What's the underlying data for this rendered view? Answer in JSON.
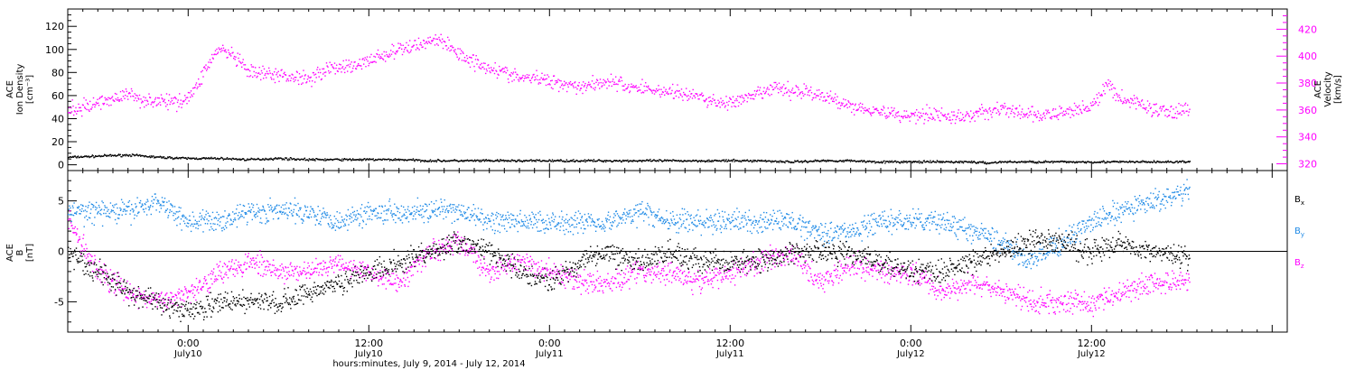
{
  "xaxis": {
    "title": "hours:minutes, July  9, 2014 - July 12, 2014",
    "ticks": [
      {
        "hour": 24,
        "time": "0:00",
        "date": "July10"
      },
      {
        "hour": 36,
        "time": "12:00",
        "date": "July10"
      },
      {
        "hour": 48,
        "time": "0:00",
        "date": "July11"
      },
      {
        "hour": 60,
        "time": "12:00",
        "date": "July11"
      },
      {
        "hour": 72,
        "time": "0:00",
        "date": "July12"
      },
      {
        "hour": 84,
        "time": "12:00",
        "date": "July12"
      }
    ],
    "range_hours": [
      16,
      97
    ],
    "data_end_hour": 90.5
  },
  "colors": {
    "black": "#000000",
    "magenta": "#ff00ff",
    "blue": "#1f8ae6"
  },
  "chart_data": [
    {
      "type": "scatter",
      "title": "",
      "ylabel_left": [
        "ACE",
        "Ion Density",
        "[cm⁻³]"
      ],
      "ylabel_right": [
        "ACE",
        "Velocity",
        "[km/s]"
      ],
      "ylim_left": [
        -5,
        135
      ],
      "yticks_left": [
        0,
        20,
        40,
        60,
        80,
        100,
        120
      ],
      "ylim_right": [
        315,
        435
      ],
      "yticks_right": [
        320,
        340,
        360,
        380,
        400,
        420
      ],
      "series": [
        {
          "name": "Ion Density",
          "axis": "left",
          "color": "black",
          "points": [
            [
              16,
              7
            ],
            [
              18,
              8
            ],
            [
              20,
              9
            ],
            [
              22,
              7
            ],
            [
              24,
              6
            ],
            [
              26,
              6
            ],
            [
              28,
              5
            ],
            [
              30,
              6
            ],
            [
              32,
              5
            ],
            [
              34,
              5
            ],
            [
              36,
              5
            ],
            [
              38,
              5
            ],
            [
              40,
              4
            ],
            [
              42,
              4
            ],
            [
              44,
              4
            ],
            [
              46,
              4
            ],
            [
              48,
              4
            ],
            [
              50,
              4
            ],
            [
              52,
              4
            ],
            [
              54,
              4
            ],
            [
              56,
              4
            ],
            [
              58,
              4
            ],
            [
              60,
              4
            ],
            [
              62,
              4
            ],
            [
              64,
              3
            ],
            [
              66,
              4
            ],
            [
              68,
              4
            ],
            [
              70,
              3
            ],
            [
              72,
              3
            ],
            [
              74,
              3
            ],
            [
              76,
              3
            ],
            [
              77,
              2
            ],
            [
              78,
              3
            ],
            [
              80,
              3
            ],
            [
              82,
              3
            ],
            [
              84,
              3
            ],
            [
              86,
              3
            ],
            [
              88,
              3
            ],
            [
              90.5,
              3
            ]
          ]
        },
        {
          "name": "Velocity",
          "axis": "right",
          "color": "magenta",
          "points": [
            [
              16,
              360
            ],
            [
              17,
              362
            ],
            [
              18,
              366
            ],
            [
              19,
              369
            ],
            [
              20,
              372
            ],
            [
              21,
              368
            ],
            [
              22,
              367
            ],
            [
              23,
              366
            ],
            [
              24,
              370
            ],
            [
              24.5,
              377
            ],
            [
              25,
              389
            ],
            [
              25.5,
              398
            ],
            [
              26,
              406
            ],
            [
              27,
              400
            ],
            [
              28,
              388
            ],
            [
              30,
              386
            ],
            [
              32,
              384
            ],
            [
              33,
              390
            ],
            [
              34,
              393
            ],
            [
              35,
              392
            ],
            [
              36,
              398
            ],
            [
              37,
              401
            ],
            [
              38,
              405
            ],
            [
              39,
              408
            ],
            [
              40,
              412
            ],
            [
              40.5,
              413
            ],
            [
              41,
              410
            ],
            [
              42,
              402
            ],
            [
              43,
              396
            ],
            [
              44,
              392
            ],
            [
              45,
              388
            ],
            [
              46,
              384
            ],
            [
              47,
              384
            ],
            [
              48,
              382
            ],
            [
              49,
              380
            ],
            [
              50,
              378
            ],
            [
              51,
              380
            ],
            [
              52,
              382
            ],
            [
              53,
              378
            ],
            [
              54,
              377
            ],
            [
              55,
              375
            ],
            [
              56,
              374
            ],
            [
              57,
              372
            ],
            [
              58,
              370
            ],
            [
              59,
              366
            ],
            [
              60,
              366
            ],
            [
              61,
              368
            ],
            [
              62,
              373
            ],
            [
              63,
              377
            ],
            [
              64,
              374
            ],
            [
              65,
              375
            ],
            [
              66,
              370
            ],
            [
              67,
              368
            ],
            [
              68,
              363
            ],
            [
              69,
              362
            ],
            [
              70,
              359
            ],
            [
              71,
              357
            ],
            [
              72,
              356
            ],
            [
              73,
              358
            ],
            [
              74,
              357
            ],
            [
              75,
              354
            ],
            [
              76,
              357
            ],
            [
              77,
              359
            ],
            [
              78,
              362
            ],
            [
              79,
              358
            ],
            [
              80,
              357
            ],
            [
              81,
              356
            ],
            [
              82,
              358
            ],
            [
              83,
              361
            ],
            [
              84,
              364
            ],
            [
              84.5,
              369
            ],
            [
              85,
              380
            ],
            [
              85.5,
              374
            ],
            [
              86,
              368
            ],
            [
              87,
              366
            ],
            [
              88,
              361
            ],
            [
              89,
              359
            ],
            [
              90,
              360
            ],
            [
              90.5,
              361
            ]
          ]
        }
      ]
    },
    {
      "type": "scatter",
      "title": "",
      "ylabel": [
        "ACE",
        "B",
        "[nT]"
      ],
      "ylim": [
        -8,
        8
      ],
      "yticks": [
        -5,
        0,
        5
      ],
      "zero_line": true,
      "legend": [
        {
          "label": "B",
          "sub": "x",
          "color": "black"
        },
        {
          "label": "B",
          "sub": "y",
          "color": "blue"
        },
        {
          "label": "B",
          "sub": "z",
          "color": "magenta"
        }
      ],
      "series": [
        {
          "name": "Bx",
          "color": "black",
          "points": [
            [
              16,
              0
            ],
            [
              18,
              -2
            ],
            [
              20,
              -4
            ],
            [
              22,
              -5
            ],
            [
              24,
              -6
            ],
            [
              26,
              -5
            ],
            [
              28,
              -5
            ],
            [
              30,
              -5
            ],
            [
              32,
              -4
            ],
            [
              34,
              -3
            ],
            [
              36,
              -2
            ],
            [
              38,
              -1
            ],
            [
              40,
              0
            ],
            [
              42,
              1
            ],
            [
              44,
              0
            ],
            [
              46,
              -2
            ],
            [
              48,
              -3
            ],
            [
              50,
              -1
            ],
            [
              52,
              0
            ],
            [
              54,
              -1
            ],
            [
              56,
              0
            ],
            [
              58,
              -1
            ],
            [
              60,
              -1
            ],
            [
              62,
              -1
            ],
            [
              64,
              0
            ],
            [
              66,
              0
            ],
            [
              68,
              0
            ],
            [
              70,
              -1
            ],
            [
              72,
              -2
            ],
            [
              74,
              -2
            ],
            [
              76,
              -1
            ],
            [
              78,
              0
            ],
            [
              80,
              1
            ],
            [
              82,
              1
            ],
            [
              84,
              0
            ],
            [
              86,
              1
            ],
            [
              88,
              0
            ],
            [
              90.5,
              -0.5
            ]
          ]
        },
        {
          "name": "By",
          "color": "blue",
          "points": [
            [
              16,
              4
            ],
            [
              18,
              4
            ],
            [
              20,
              4
            ],
            [
              22,
              5
            ],
            [
              24,
              3
            ],
            [
              26,
              3
            ],
            [
              28,
              4
            ],
            [
              30,
              4
            ],
            [
              32,
              4
            ],
            [
              34,
              3
            ],
            [
              36,
              4
            ],
            [
              38,
              4
            ],
            [
              40,
              4
            ],
            [
              42,
              4
            ],
            [
              44,
              3
            ],
            [
              46,
              3
            ],
            [
              48,
              3
            ],
            [
              50,
              3
            ],
            [
              52,
              3
            ],
            [
              54,
              4
            ],
            [
              56,
              3
            ],
            [
              58,
              3
            ],
            [
              60,
              3
            ],
            [
              62,
              3
            ],
            [
              64,
              3
            ],
            [
              66,
              2
            ],
            [
              68,
              2
            ],
            [
              70,
              3
            ],
            [
              72,
              3
            ],
            [
              74,
              3
            ],
            [
              76,
              2
            ],
            [
              78,
              1
            ],
            [
              80,
              -1
            ],
            [
              82,
              1
            ],
            [
              84,
              3
            ],
            [
              86,
              4
            ],
            [
              88,
              5
            ],
            [
              90.5,
              6
            ]
          ]
        },
        {
          "name": "Bz",
          "color": "magenta",
          "points": [
            [
              16,
              3
            ],
            [
              18,
              -2
            ],
            [
              20,
              -4
            ],
            [
              22,
              -5
            ],
            [
              24,
              -4
            ],
            [
              26,
              -2
            ],
            [
              28,
              -1
            ],
            [
              30,
              -2
            ],
            [
              32,
              -2
            ],
            [
              34,
              -1
            ],
            [
              36,
              -2
            ],
            [
              38,
              -3
            ],
            [
              40,
              0
            ],
            [
              42,
              1
            ],
            [
              44,
              -2
            ],
            [
              46,
              -1
            ],
            [
              48,
              -2
            ],
            [
              50,
              -3
            ],
            [
              52,
              -3
            ],
            [
              54,
              -2
            ],
            [
              56,
              -2
            ],
            [
              58,
              -3
            ],
            [
              60,
              -2
            ],
            [
              62,
              -1
            ],
            [
              64,
              0
            ],
            [
              66,
              -3
            ],
            [
              68,
              -1
            ],
            [
              70,
              -2
            ],
            [
              72,
              -2
            ],
            [
              74,
              -4
            ],
            [
              76,
              -3
            ],
            [
              78,
              -4
            ],
            [
              80,
              -5
            ],
            [
              82,
              -5
            ],
            [
              84,
              -5
            ],
            [
              86,
              -4
            ],
            [
              88,
              -3
            ],
            [
              90.5,
              -3
            ]
          ]
        }
      ]
    }
  ]
}
